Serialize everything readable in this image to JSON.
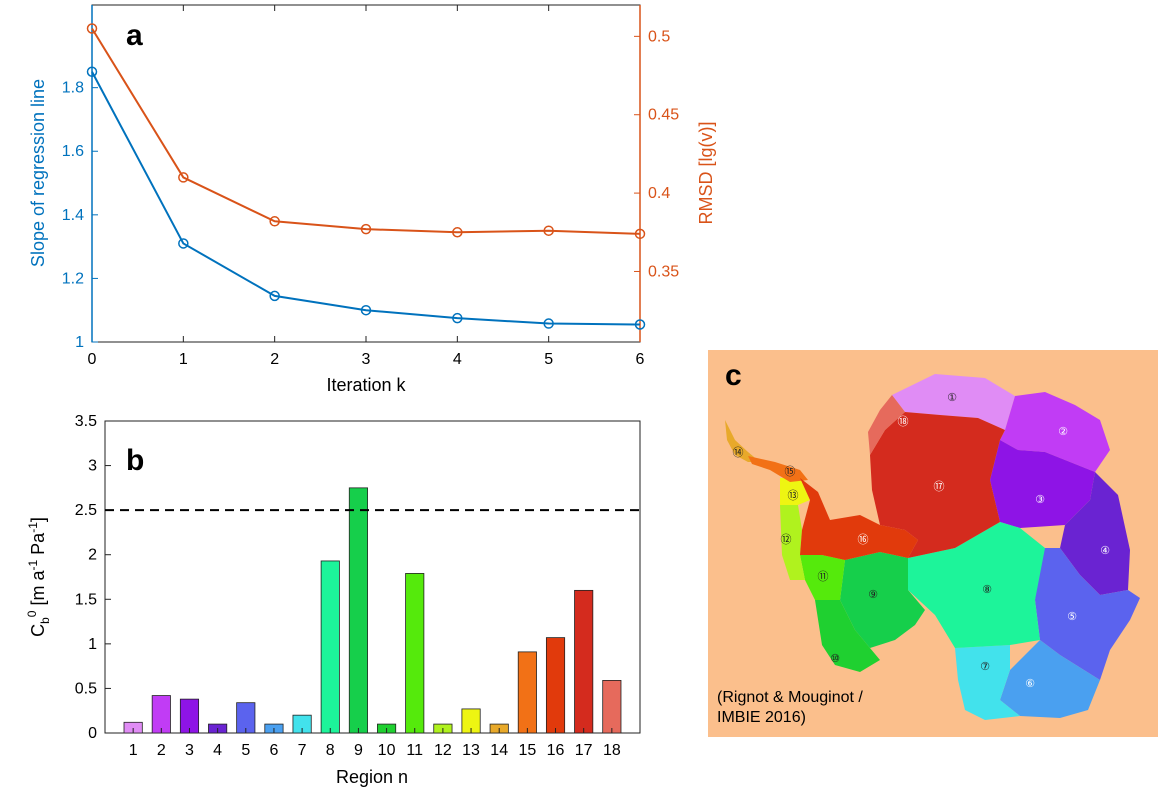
{
  "chart_data": [
    {
      "type": "line",
      "panel_label": "a",
      "xlabel": "Iteration k",
      "ylabel_left": "Slope of regression line",
      "ylabel_right": "RMSD [lg(v)]",
      "x": [
        0,
        1,
        2,
        3,
        4,
        5,
        6
      ],
      "xlim": [
        0,
        6
      ],
      "ylim_left": [
        1,
        2.06
      ],
      "ylim_right": [
        0.305,
        0.52
      ],
      "xticks": [
        "0",
        "1",
        "2",
        "3",
        "4",
        "5",
        "6"
      ],
      "yticks_left": [
        "1",
        "1.2",
        "1.4",
        "1.6",
        "1.8"
      ],
      "yticks_right": [
        "0.35",
        "0.4",
        "0.45",
        "0.5"
      ],
      "series": [
        {
          "axis": "left",
          "color": "#0072BD",
          "values": [
            1.85,
            1.31,
            1.145,
            1.1,
            1.075,
            1.058,
            1.055
          ]
        },
        {
          "axis": "right",
          "color": "#D95319",
          "values": [
            0.505,
            0.41,
            0.382,
            0.377,
            0.375,
            0.376,
            0.374
          ]
        }
      ],
      "left_axis_color": "#0072BD",
      "right_axis_color": "#D95319",
      "grid": false
    },
    {
      "type": "bar",
      "panel_label": "b",
      "xlabel": "Region n",
      "ylabel": "C",
      "ylabel_sub": "b",
      "ylabel_sup": "0",
      "ylabel_units_a": " [m a",
      "ylabel_units_sup_a": "-1",
      "ylabel_units_b": " Pa",
      "ylabel_units_sup_b": "-1",
      "ylabel_units_end": "]",
      "categories": [
        "1",
        "2",
        "3",
        "4",
        "5",
        "6",
        "7",
        "8",
        "9",
        "10",
        "11",
        "12",
        "13",
        "14",
        "15",
        "16",
        "17",
        "18"
      ],
      "values": [
        0.12,
        0.42,
        0.38,
        0.1,
        0.34,
        0.1,
        0.2,
        1.93,
        2.75,
        0.1,
        1.79,
        0.1,
        0.27,
        0.1,
        0.91,
        1.07,
        1.6,
        0.59
      ],
      "colors": [
        "#E08CF5",
        "#C13CF5",
        "#8E14E6",
        "#6A23D2",
        "#5B63EE",
        "#4AA0F0",
        "#42E2EC",
        "#1DF49A",
        "#16CF4B",
        "#1FD030",
        "#55EA0C",
        "#B0F21E",
        "#EEF512",
        "#E8A92A",
        "#F27116",
        "#E13A0C",
        "#D42B1E",
        "#E66A5C"
      ],
      "ylim": [
        0,
        3.5
      ],
      "yticks": [
        "0",
        "0.5",
        "1",
        "1.5",
        "2",
        "2.5",
        "3",
        "3.5"
      ],
      "reference_line": 2.5,
      "grid": false
    }
  ],
  "map_panel": {
    "panel_label": "c",
    "background": "#FBBF8C",
    "credit_line1": "(Rignot & Mouginot /",
    "credit_line2": "IMBIE 2016)",
    "regions": [
      {
        "label": "①",
        "color": "#E08CF5"
      },
      {
        "label": "②",
        "color": "#C13CF5"
      },
      {
        "label": "③",
        "color": "#8E14E6"
      },
      {
        "label": "④",
        "color": "#6A23D2"
      },
      {
        "label": "⑤",
        "color": "#5B63EE"
      },
      {
        "label": "⑥",
        "color": "#4AA0F0"
      },
      {
        "label": "⑦",
        "color": "#42E2EC"
      },
      {
        "label": "⑧",
        "color": "#1DF49A"
      },
      {
        "label": "⑨",
        "color": "#16CF4B"
      },
      {
        "label": "⑩",
        "color": "#1FD030"
      },
      {
        "label": "⑪",
        "color": "#55EA0C"
      },
      {
        "label": "⑫",
        "color": "#B0F21E"
      },
      {
        "label": "⑬",
        "color": "#EEF512"
      },
      {
        "label": "⑭",
        "color": "#E8A92A"
      },
      {
        "label": "⑮",
        "color": "#F27116"
      },
      {
        "label": "⑯",
        "color": "#E13A0C"
      },
      {
        "label": "⑰",
        "color": "#D42B1E"
      },
      {
        "label": "⑱",
        "color": "#E66A5C"
      }
    ]
  }
}
